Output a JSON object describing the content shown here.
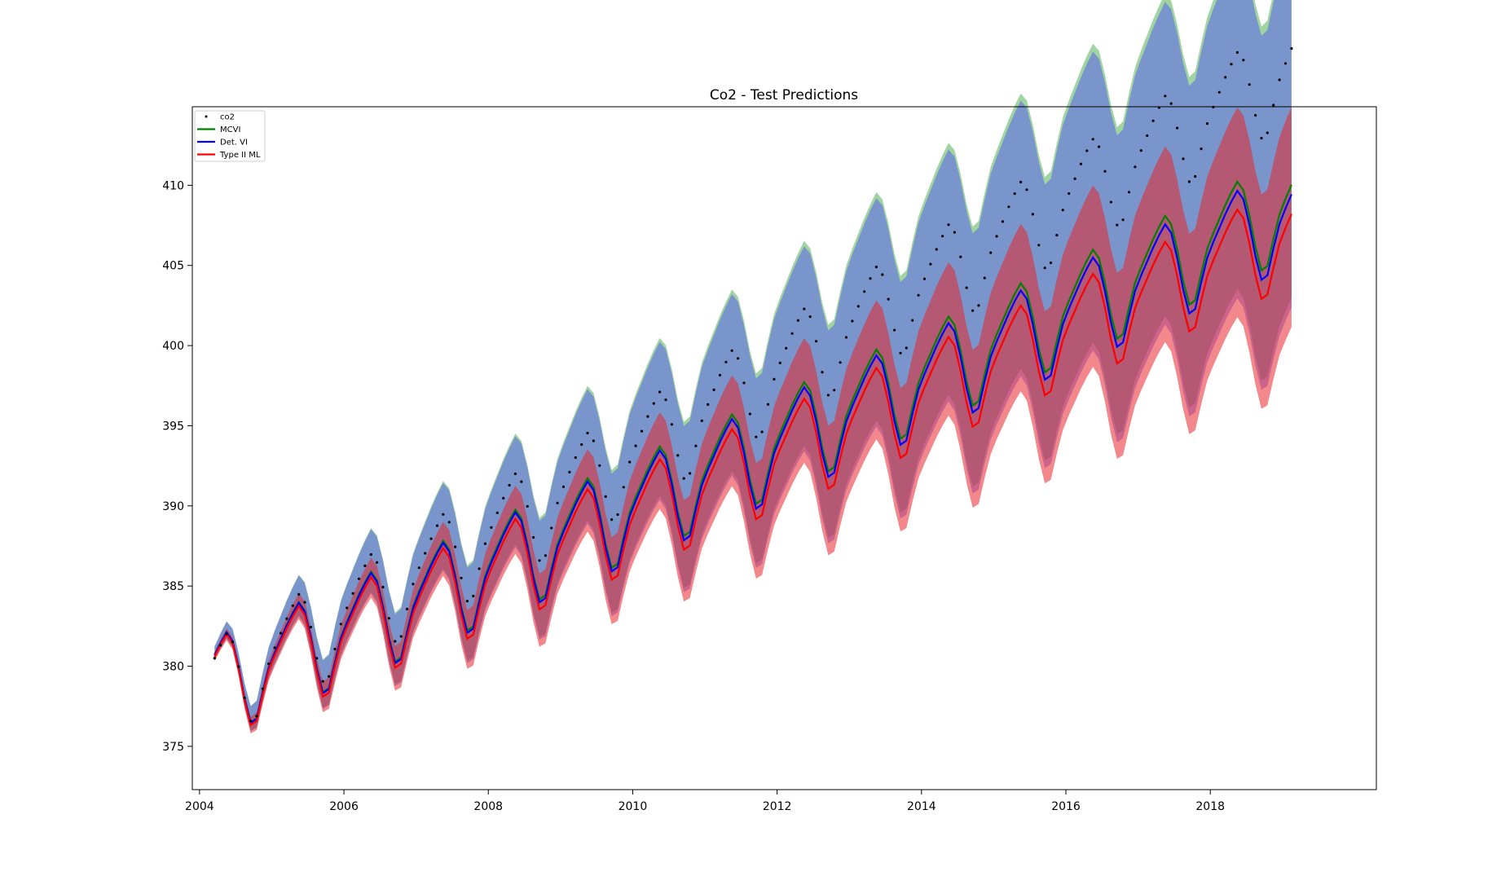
{
  "chart_data": {
    "type": "line",
    "title": "Co2 - Test Predictions",
    "xlabel": "",
    "ylabel": "",
    "xlim": [
      2003.9,
      2020.3
    ],
    "ylim": [
      372.3,
      414.9
    ],
    "x_ticks": [
      2004,
      2006,
      2008,
      2010,
      2012,
      2014,
      2016,
      2018
    ],
    "y_ticks": [
      375,
      380,
      385,
      390,
      395,
      400,
      405,
      410
    ],
    "grid": false,
    "legend_position": "top-left",
    "x_start": 2004.208,
    "x_end": 2019.125,
    "model": {
      "base": 378.75,
      "trend_per_year": 1.833,
      "trend_quad": 0.0094,
      "seasonal": [
        {
          "month": 1,
          "value": 0.55
        },
        {
          "month": 2,
          "value": 1.25
        },
        {
          "month": 3,
          "value": 1.95
        },
        {
          "month": 4,
          "value": 2.55
        },
        {
          "month": 5,
          "value": 3.05
        },
        {
          "month": 6,
          "value": 2.35
        },
        {
          "month": 7,
          "value": 0.6
        },
        {
          "month": 8,
          "value": -1.55
        },
        {
          "month": 9,
          "value": -3.2
        },
        {
          "month": 10,
          "value": -3.1
        },
        {
          "month": 11,
          "value": -1.6
        },
        {
          "month": 12,
          "value": -0.25
        }
      ],
      "co2_offset": {
        "intercept": -0.2,
        "slope": 0.62
      },
      "band_halfwidth": {
        "intercept": 0.3,
        "slope": 0.45
      }
    },
    "series": [
      {
        "name": "co2",
        "kind": "points",
        "color": "#000000"
      },
      {
        "name": "MCVI",
        "kind": "line",
        "color": "#008000",
        "offset": {
          "intercept": 0.0,
          "slope": 0.04
        },
        "band_color": "#2ca02c"
      },
      {
        "name": "Det. VI",
        "kind": "line",
        "color": "#0000ff",
        "offset": {
          "intercept": 0.0,
          "slope": 0.0
        },
        "band_color": "#4a4aff"
      },
      {
        "name": "Type II ML",
        "kind": "line",
        "color": "#ff0000",
        "offset": {
          "intercept": -0.1,
          "slope": -0.075
        },
        "band_color": "#e8262c"
      }
    ]
  }
}
